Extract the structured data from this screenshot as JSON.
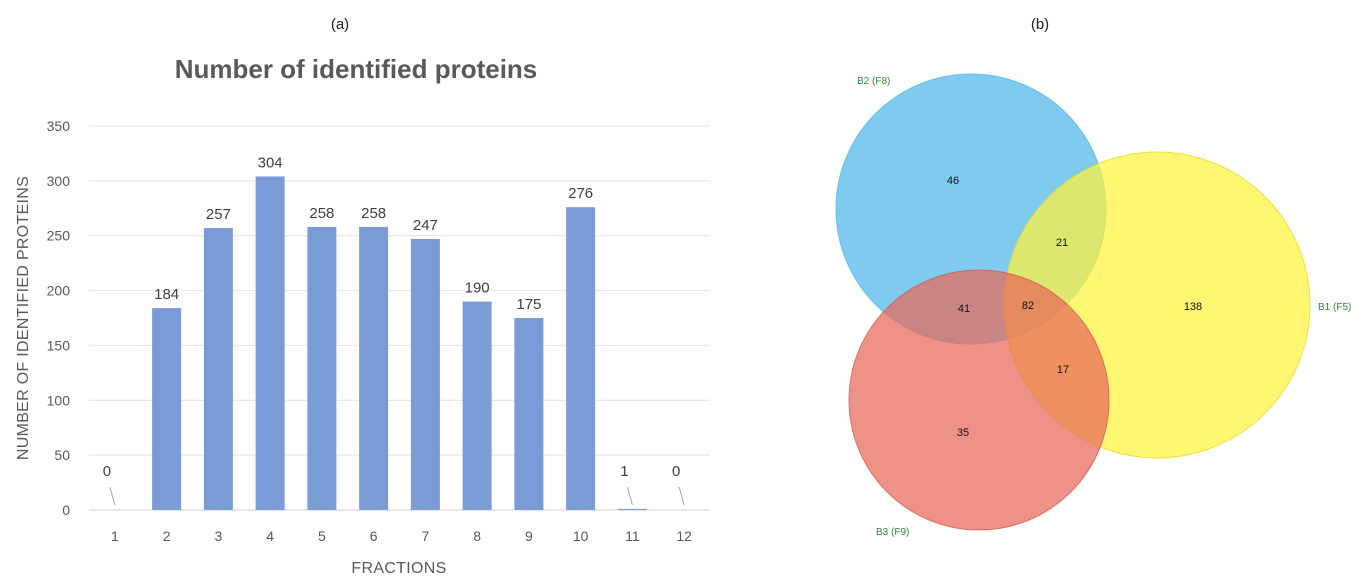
{
  "panels": {
    "a": "(a)",
    "b": "(b)"
  },
  "chart_data": [
    {
      "type": "bar",
      "title": "Number of identified proteins",
      "xlabel": "FRACTIONS",
      "ylabel": "NUMBER OF IDENTIFIED PROTEINS",
      "categories": [
        "1",
        "2",
        "3",
        "4",
        "5",
        "6",
        "7",
        "8",
        "9",
        "10",
        "11",
        "12"
      ],
      "values": [
        0,
        184,
        257,
        304,
        258,
        258,
        247,
        190,
        175,
        276,
        1,
        0
      ],
      "data_labels": [
        "0",
        "184",
        "257",
        "304",
        "258",
        "258",
        "247",
        "190",
        "175",
        "276",
        "1",
        "0"
      ],
      "ylim": [
        0,
        350
      ],
      "yticks": [
        0,
        50,
        100,
        150,
        200,
        250,
        300,
        350
      ],
      "grid": true,
      "bar_color": "#7b9bd6"
    },
    {
      "type": "venn",
      "sets": [
        {
          "name": "B2 (F8)",
          "color": "#5bbcec"
        },
        {
          "name": "B1 (F5)",
          "color": "#fff23a"
        },
        {
          "name": "B3 (F9)",
          "color": "#e8685a"
        }
      ],
      "set_label_color": "#2e8b2e",
      "regions": {
        "b2_only": 46,
        "b1_only": 138,
        "b3_only": 35,
        "b2_b1": 21,
        "b2_b3": 41,
        "b1_b3": 17,
        "all_three": 82
      }
    }
  ]
}
